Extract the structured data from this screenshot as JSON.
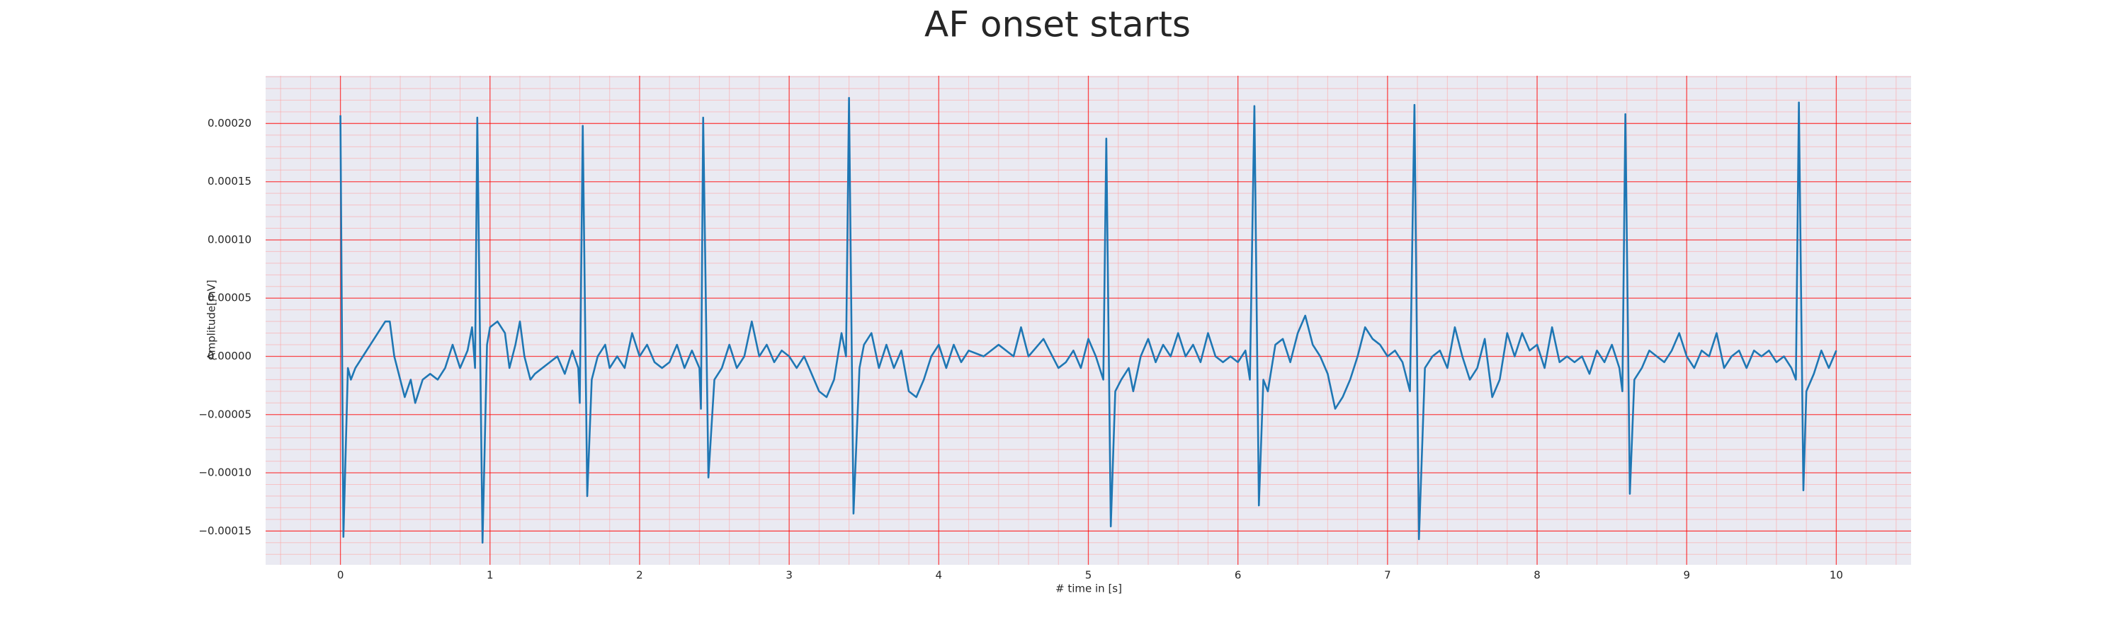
{
  "chart_data": {
    "type": "line",
    "title": "AF onset starts",
    "xlabel": "# time in [s]",
    "ylabel": "Amplitude[mV]",
    "xlim": [
      -0.5,
      10.5
    ],
    "ylim": [
      -0.000179,
      0.000241
    ],
    "xticks": [
      0,
      1,
      2,
      3,
      4,
      5,
      6,
      7,
      8,
      9,
      10
    ],
    "yticks": [
      {
        "value": -0.00015,
        "label": "−0.00015"
      },
      {
        "value": -0.0001,
        "label": "−0.00010"
      },
      {
        "value": -5e-05,
        "label": "−0.00005"
      },
      {
        "value": 0,
        "label": "0.00000"
      },
      {
        "value": 5e-05,
        "label": "0.00005"
      },
      {
        "value": 0.0001,
        "label": "0.00010"
      },
      {
        "value": 0.00015,
        "label": "0.00015"
      },
      {
        "value": 0.0002,
        "label": "0.00020"
      }
    ],
    "xminorticks": [
      -0.4,
      -0.2,
      0.2,
      0.4,
      0.6,
      0.8,
      1.2,
      1.4,
      1.6,
      1.8,
      2.2,
      2.4,
      2.6,
      2.8,
      3.2,
      3.4,
      3.6,
      3.8,
      4.2,
      4.4,
      4.6,
      4.8,
      5.2,
      5.4,
      5.6,
      5.8,
      6.2,
      6.4,
      6.6,
      6.8,
      7.2,
      7.4,
      7.6,
      7.8,
      8.2,
      8.4,
      8.6,
      8.8,
      9.2,
      9.4,
      9.6,
      9.8,
      10.2,
      10.4
    ],
    "yminorticks": [
      -0.00017,
      -0.00016,
      -0.00014,
      -0.00013,
      -0.00012,
      -0.00011,
      -9e-05,
      -8e-05,
      -7e-05,
      -6e-05,
      -4e-05,
      -3e-05,
      -2e-05,
      -1e-05,
      1e-05,
      2e-05,
      3e-05,
      4e-05,
      6e-05,
      7e-05,
      8e-05,
      9e-05,
      0.00011,
      0.00012,
      0.00013,
      0.00014,
      0.00016,
      0.00017,
      0.00018,
      0.00019,
      0.00021,
      0.00022,
      0.00023,
      0.00024
    ],
    "grid": true,
    "grid_color": "#ff0000",
    "minor_grid_color": "#ff9999",
    "background": "#eaeaf2",
    "series": [
      {
        "color": "#1f77b4",
        "x": [
          0,
          0.02,
          0.05,
          0.07,
          0.1,
          0.15,
          0.2,
          0.25,
          0.3,
          0.33,
          0.36,
          0.4,
          0.43,
          0.47,
          0.5,
          0.55,
          0.6,
          0.65,
          0.7,
          0.75,
          0.8,
          0.85,
          0.88,
          0.9,
          0.915,
          0.95,
          0.98,
          1.0,
          1.05,
          1.1,
          1.13,
          1.17,
          1.2,
          1.23,
          1.27,
          1.3,
          1.35,
          1.4,
          1.45,
          1.5,
          1.55,
          1.59,
          1.6,
          1.62,
          1.65,
          1.68,
          1.72,
          1.77,
          1.8,
          1.85,
          1.9,
          1.95,
          2.0,
          2.05,
          2.1,
          2.15,
          2.2,
          2.25,
          2.3,
          2.35,
          2.4,
          2.41,
          2.425,
          2.46,
          2.5,
          2.55,
          2.6,
          2.65,
          2.7,
          2.75,
          2.8,
          2.85,
          2.9,
          2.95,
          3.0,
          3.05,
          3.1,
          3.15,
          3.2,
          3.25,
          3.3,
          3.35,
          3.38,
          3.4,
          3.43,
          3.47,
          3.5,
          3.55,
          3.6,
          3.65,
          3.7,
          3.75,
          3.8,
          3.85,
          3.9,
          3.95,
          4.0,
          4.05,
          4.1,
          4.15,
          4.2,
          4.3,
          4.4,
          4.5,
          4.55,
          4.6,
          4.7,
          4.8,
          4.85,
          4.9,
          4.95,
          5.0,
          5.05,
          5.1,
          5.12,
          5.15,
          5.18,
          5.22,
          5.27,
          5.3,
          5.35,
          5.4,
          5.45,
          5.5,
          5.55,
          5.6,
          5.65,
          5.7,
          5.75,
          5.8,
          5.85,
          5.9,
          5.95,
          6.0,
          6.05,
          6.08,
          6.11,
          6.14,
          6.17,
          6.2,
          6.25,
          6.3,
          6.35,
          6.4,
          6.45,
          6.5,
          6.55,
          6.6,
          6.65,
          6.7,
          6.75,
          6.8,
          6.85,
          6.9,
          6.95,
          7.0,
          7.05,
          7.1,
          7.15,
          7.18,
          7.21,
          7.25,
          7.3,
          7.35,
          7.4,
          7.45,
          7.5,
          7.55,
          7.6,
          7.65,
          7.7,
          7.75,
          7.8,
          7.85,
          7.9,
          7.95,
          8.0,
          8.05,
          8.1,
          8.15,
          8.2,
          8.25,
          8.3,
          8.35,
          8.4,
          8.45,
          8.5,
          8.55,
          8.57,
          8.59,
          8.62,
          8.65,
          8.7,
          8.75,
          8.8,
          8.85,
          8.9,
          8.95,
          9.0,
          9.05,
          9.1,
          9.15,
          9.2,
          9.25,
          9.3,
          9.35,
          9.4,
          9.45,
          9.5,
          9.55,
          9.6,
          9.65,
          9.7,
          9.73,
          9.75,
          9.78,
          9.8,
          9.85,
          9.9,
          9.95,
          10.0
        ],
        "values": [
          0.000207,
          -0.000155,
          -1e-05,
          -2e-05,
          -1e-05,
          0,
          1e-05,
          2e-05,
          3e-05,
          3e-05,
          0,
          -2e-05,
          -3.5e-05,
          -2e-05,
          -4e-05,
          -2e-05,
          -1.5e-05,
          -2e-05,
          -1e-05,
          1e-05,
          -1e-05,
          5e-06,
          2.5e-05,
          -1e-05,
          0.000205,
          -0.00016,
          1e-05,
          2.5e-05,
          3e-05,
          2e-05,
          -1e-05,
          1e-05,
          3e-05,
          0,
          -2e-05,
          -1.5e-05,
          -1e-05,
          -5e-06,
          0,
          -1.5e-05,
          5e-06,
          -1e-05,
          -4e-05,
          0.000198,
          -0.00012,
          -2e-05,
          0,
          1e-05,
          -1e-05,
          0,
          -1e-05,
          2e-05,
          0,
          1e-05,
          -5e-06,
          -1e-05,
          -5e-06,
          1e-05,
          -1e-05,
          5e-06,
          -1e-05,
          -4.5e-05,
          0.000205,
          -0.000104,
          -2e-05,
          -1e-05,
          1e-05,
          -1e-05,
          0,
          3e-05,
          0,
          1e-05,
          -5e-06,
          5e-06,
          0,
          -1e-05,
          0,
          -1.5e-05,
          -3e-05,
          -3.5e-05,
          -2e-05,
          2e-05,
          0,
          0.000222,
          -0.000135,
          -1e-05,
          1e-05,
          2e-05,
          -1e-05,
          1e-05,
          -1e-05,
          5e-06,
          -3e-05,
          -3.5e-05,
          -2e-05,
          0,
          1e-05,
          -1e-05,
          1e-05,
          -5e-06,
          5e-06,
          0,
          1e-05,
          0,
          2.5e-05,
          0,
          1.5e-05,
          -1e-05,
          -5e-06,
          5e-06,
          -1e-05,
          1.5e-05,
          0,
          -2e-05,
          0.000187,
          -0.000146,
          -3e-05,
          -2e-05,
          -1e-05,
          -3e-05,
          0,
          1.5e-05,
          -5e-06,
          1e-05,
          0,
          2e-05,
          0,
          1e-05,
          -5e-06,
          2e-05,
          0,
          -5e-06,
          0,
          -5e-06,
          5e-06,
          -2e-05,
          0.000215,
          -0.000128,
          -2e-05,
          -3e-05,
          1e-05,
          1.5e-05,
          -5e-06,
          2e-05,
          3.5e-05,
          1e-05,
          0,
          -1.5e-05,
          -4.5e-05,
          -3.5e-05,
          -2e-05,
          0,
          2.5e-05,
          1.5e-05,
          1e-05,
          0,
          5e-06,
          -5e-06,
          -3e-05,
          0.000216,
          -0.000157,
          -1e-05,
          0,
          5e-06,
          -1e-05,
          2.5e-05,
          0,
          -2e-05,
          -1e-05,
          1.5e-05,
          -3.5e-05,
          -2e-05,
          2e-05,
          0,
          2e-05,
          5e-06,
          1e-05,
          -1e-05,
          2.5e-05,
          -5e-06,
          0,
          -5e-06,
          0,
          -1.5e-05,
          5e-06,
          -5e-06,
          1e-05,
          -1e-05,
          -3e-05,
          0.000208,
          -0.000118,
          -2e-05,
          -1e-05,
          5e-06,
          0,
          -5e-06,
          5e-06,
          2e-05,
          0,
          -1e-05,
          5e-06,
          0,
          2e-05,
          -1e-05,
          0,
          5e-06,
          -1e-05,
          5e-06,
          0,
          5e-06,
          -5e-06,
          0,
          -1e-05,
          -2e-05,
          0.000218,
          -0.000115,
          -3e-05,
          -1.5e-05,
          5e-06,
          -1e-05,
          5e-06
        ]
      }
    ]
  }
}
